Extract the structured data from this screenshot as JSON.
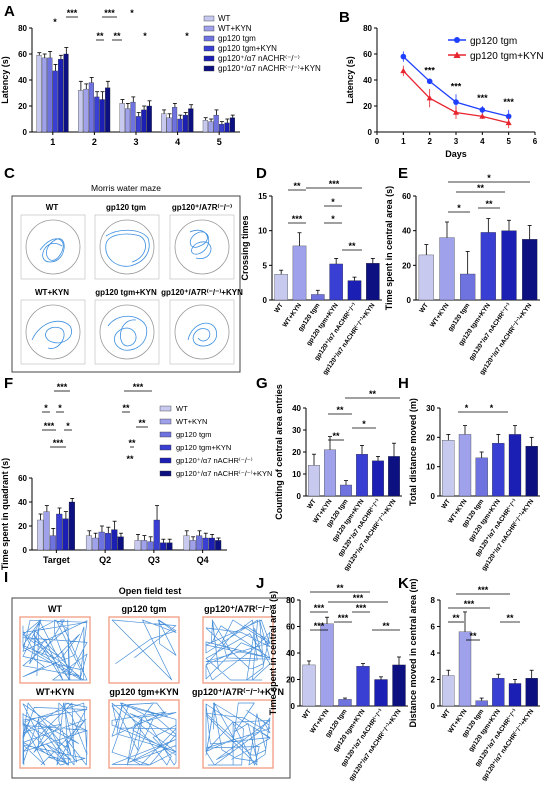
{
  "panel_labels": {
    "A": "A",
    "B": "B",
    "C": "C",
    "D": "D",
    "E": "E",
    "F": "F",
    "G": "G",
    "H": "H",
    "I": "I",
    "J": "J",
    "K": "K"
  },
  "groups": [
    "WT",
    "WT+KYN",
    "gp120 tgm",
    "gp120 tgm+KYN",
    "gp120⁺/α7 nACHR⁽⁻/⁻⁾",
    "gp120⁺/α7 nACHR⁽⁻/⁻⁾+KYN"
  ],
  "colors": [
    "#c7c9ef",
    "#9fa1ea",
    "#6f73e0",
    "#3a3fd3",
    "#1b1fb3",
    "#0d1080"
  ],
  "mwm": {
    "title": "Morris water maze",
    "cells": [
      "WT",
      "gp120 tgm",
      "gp120⁺/A7R⁽⁻/⁻⁾",
      "WT+KYN",
      "gp120 tgm+KYN",
      "gp120⁺/A7R⁽⁻/⁻⁾+KYN"
    ]
  },
  "oft": {
    "title": "Open field test",
    "cells": [
      "WT",
      "gp120 tgm",
      "gp120⁺/A7R⁽⁻/⁻⁾",
      "WT+KYN",
      "gp120 tgm+KYN",
      "gp120⁺/A7R⁽⁻/⁻⁾+KYN"
    ]
  },
  "sig": {
    "A": [
      "*",
      "***",
      "***",
      "*",
      "**",
      "**",
      "*",
      "*"
    ],
    "B": [
      "***",
      "***",
      "***",
      "***"
    ],
    "D": [
      "**",
      "*",
      "***",
      "***",
      "*",
      "**"
    ],
    "E": [
      "*",
      "**",
      "**",
      "*"
    ],
    "F": [
      "*",
      "***",
      "*",
      "***",
      "*",
      "***",
      "**",
      "**",
      "**",
      "**",
      "***"
    ],
    "G": [
      "**",
      "**",
      "*",
      "**"
    ],
    "H": [
      "*",
      "*"
    ],
    "J": [
      "**",
      "***",
      "***",
      "***",
      "***",
      "***",
      "**"
    ],
    "K": [
      "***",
      "***",
      "**",
      "**",
      "**"
    ]
  },
  "chart_data": [
    {
      "panel": "A",
      "type": "bar",
      "ylabel": "Latency (s)",
      "xlabel": "",
      "ylim": [
        0,
        80
      ],
      "yticks": [
        0,
        20,
        40,
        60,
        80
      ],
      "categories": [
        "1",
        "2",
        "3",
        "4",
        "5"
      ],
      "series": [
        {
          "name": "WT",
          "values": [
            59,
            32,
            22,
            14,
            9
          ]
        },
        {
          "name": "WT+KYN",
          "values": [
            57,
            33,
            18,
            11,
            8
          ]
        },
        {
          "name": "gp120 tgm",
          "values": [
            57,
            38,
            23,
            19,
            13
          ]
        },
        {
          "name": "gp120 tgm+KYN",
          "values": [
            47,
            27,
            12,
            10,
            6
          ]
        },
        {
          "name": "gp120⁺/α7 nACHR⁽⁻/⁻⁾",
          "values": [
            56,
            25,
            17,
            13,
            7
          ]
        },
        {
          "name": "gp120⁺/α7 nACHR⁽⁻/⁻⁾+KYN",
          "values": [
            60,
            34,
            20,
            18,
            11
          ]
        }
      ],
      "errors": [
        [
          2,
          7,
          3,
          3,
          2
        ],
        [
          3,
          4,
          4,
          3,
          2
        ],
        [
          5,
          4,
          4,
          3,
          4
        ],
        [
          5,
          4,
          3,
          3,
          2
        ],
        [
          3,
          6,
          3,
          2,
          3
        ],
        [
          5,
          5,
          4,
          3,
          2
        ]
      ]
    },
    {
      "panel": "B",
      "type": "line",
      "xlabel": "Days",
      "ylabel": "Latency (s)",
      "xlim": [
        0,
        6
      ],
      "ylim": [
        0,
        80
      ],
      "xticks": [
        0,
        1,
        2,
        3,
        4,
        5,
        6
      ],
      "yticks": [
        0,
        20,
        40,
        60,
        80
      ],
      "series": [
        {
          "name": "gp120 tgm",
          "x": [
            1,
            2,
            3,
            4,
            5
          ],
          "y": [
            58,
            39,
            23,
            17,
            12
          ],
          "err": [
            4,
            2,
            6,
            3,
            5
          ],
          "color": "#1f3fff"
        },
        {
          "name": "gp120 tgm+KYN",
          "x": [
            1,
            2,
            3,
            4,
            5
          ],
          "y": [
            47,
            26,
            15,
            12,
            7
          ],
          "err": [
            4,
            7,
            5,
            2,
            4
          ],
          "color": "#e8242f"
        }
      ]
    },
    {
      "panel": "D",
      "type": "bar",
      "ylabel": "Crossing times",
      "ylim": [
        0,
        15
      ],
      "yticks": [
        0,
        5,
        10,
        15
      ],
      "categories": [
        "WT",
        "WT+KYN",
        "gp120 tgm",
        "gp120 tgm+KYN",
        "gp120⁺/α7 nACHR⁽⁻/⁻⁾",
        "gp120⁺/α7 nACHR⁽⁻/⁻⁾+KYN"
      ],
      "values": [
        3.7,
        7.8,
        0.8,
        5.2,
        2.8,
        5.3
      ],
      "errors": [
        0.6,
        1.9,
        0.6,
        0.8,
        0.5,
        0.7
      ]
    },
    {
      "panel": "E",
      "type": "bar",
      "ylabel": "Time spent in central area (s)",
      "ylim": [
        0,
        60
      ],
      "yticks": [
        0,
        20,
        40,
        60
      ],
      "categories": [
        "WT",
        "WT+KYN",
        "gp120 tgm",
        "gp120 tgm+KYN",
        "gp120⁺/α7 nACHR⁽⁻/⁻⁾",
        "gp120⁺/α7 nACHR⁽⁻/⁻⁾+KYN"
      ],
      "values": [
        26,
        36,
        15,
        39,
        40,
        35
      ],
      "errors": [
        6,
        9,
        13,
        8,
        6,
        8
      ]
    },
    {
      "panel": "F",
      "type": "bar",
      "ylabel": "Time spent in quadrant (s)",
      "ylim": [
        0,
        60
      ],
      "yticks": [
        0,
        20,
        40,
        60
      ],
      "categories": [
        "Target",
        "Q2",
        "Q3",
        "Q4"
      ],
      "series": [
        {
          "name": "WT",
          "values": [
            25,
            12,
            8,
            12
          ]
        },
        {
          "name": "WT+KYN",
          "values": [
            32,
            10,
            8,
            8
          ]
        },
        {
          "name": "gp120 tgm",
          "values": [
            12,
            15,
            7,
            12
          ]
        },
        {
          "name": "gp120 tgm+KYN",
          "values": [
            30,
            14,
            25,
            10
          ]
        },
        {
          "name": "gp120⁺/α7 nACHR⁽⁻/⁻⁾",
          "values": [
            26,
            17,
            6,
            10
          ]
        },
        {
          "name": "gp120⁺/α7 nACHR⁽⁻/⁻⁾+KYN",
          "values": [
            40,
            11,
            6,
            8
          ]
        }
      ],
      "errors": [
        [
          5,
          4,
          5,
          4
        ],
        [
          5,
          4,
          4,
          3
        ],
        [
          6,
          5,
          4,
          4
        ],
        [
          5,
          5,
          12,
          4
        ],
        [
          6,
          7,
          3,
          3
        ],
        [
          3,
          3,
          3,
          2
        ]
      ]
    },
    {
      "panel": "G",
      "type": "bar",
      "ylabel": "Counting of central area entries",
      "ylim": [
        0,
        40
      ],
      "yticks": [
        0,
        10,
        20,
        30,
        40
      ],
      "categories": [
        "WT",
        "WT+KYN",
        "gp120 tgm",
        "gp120 tgm+KYN",
        "gp120⁺/α7 nACHR⁽⁻/⁻⁾",
        "gp120⁺/α7 nACHR⁽⁻/⁻⁾+KYN"
      ],
      "values": [
        14,
        21,
        5,
        19,
        16,
        18
      ],
      "errors": [
        5,
        6,
        2,
        4,
        2,
        6
      ]
    },
    {
      "panel": "H",
      "type": "bar",
      "ylabel": "Total distance moved (m)",
      "ylim": [
        0,
        30
      ],
      "yticks": [
        0,
        10,
        20,
        30
      ],
      "categories": [
        "WT",
        "WT+KYN",
        "gp120 tgm",
        "gp120 tgm+KYN",
        "gp120⁺/α7 nACHR⁽⁻/⁻⁾",
        "gp120⁺/α7 nACHR⁽⁻/⁻⁾+KYN"
      ],
      "values": [
        19,
        21,
        13,
        18,
        21,
        17
      ],
      "errors": [
        2,
        3,
        2,
        3,
        3,
        3
      ]
    },
    {
      "panel": "J",
      "type": "bar",
      "ylabel": "Time spent in central area (s)",
      "ylim": [
        0,
        80
      ],
      "yticks": [
        0,
        20,
        40,
        60,
        80
      ],
      "categories": [
        "WT",
        "WT+KYN",
        "gp120 tgm",
        "gp120 tgm+KYN",
        "gp120⁺/α7 nACHR⁽⁻/⁻⁾",
        "gp120⁺/α7 nACHR⁽⁻/⁻⁾+KYN"
      ],
      "values": [
        31,
        62,
        5,
        30,
        20,
        31
      ],
      "errors": [
        3,
        5,
        1,
        2,
        2,
        6
      ]
    },
    {
      "panel": "K",
      "type": "bar",
      "ylabel": "Distance moved in central area (m)",
      "ylim": [
        0,
        8
      ],
      "yticks": [
        0,
        2,
        4,
        6,
        8
      ],
      "categories": [
        "WT",
        "WT+KYN",
        "gp120 tgm",
        "gp120 tgm+KYN",
        "gp120⁺/α7 nACHR⁽⁻/⁻⁾",
        "gp120⁺/α7 nACHR⁽⁻/⁻⁾+KYN"
      ],
      "values": [
        2.3,
        5.6,
        0.4,
        2.1,
        1.7,
        2.1
      ],
      "errors": [
        0.4,
        1.5,
        0.2,
        0.3,
        0.3,
        0.6
      ]
    }
  ]
}
